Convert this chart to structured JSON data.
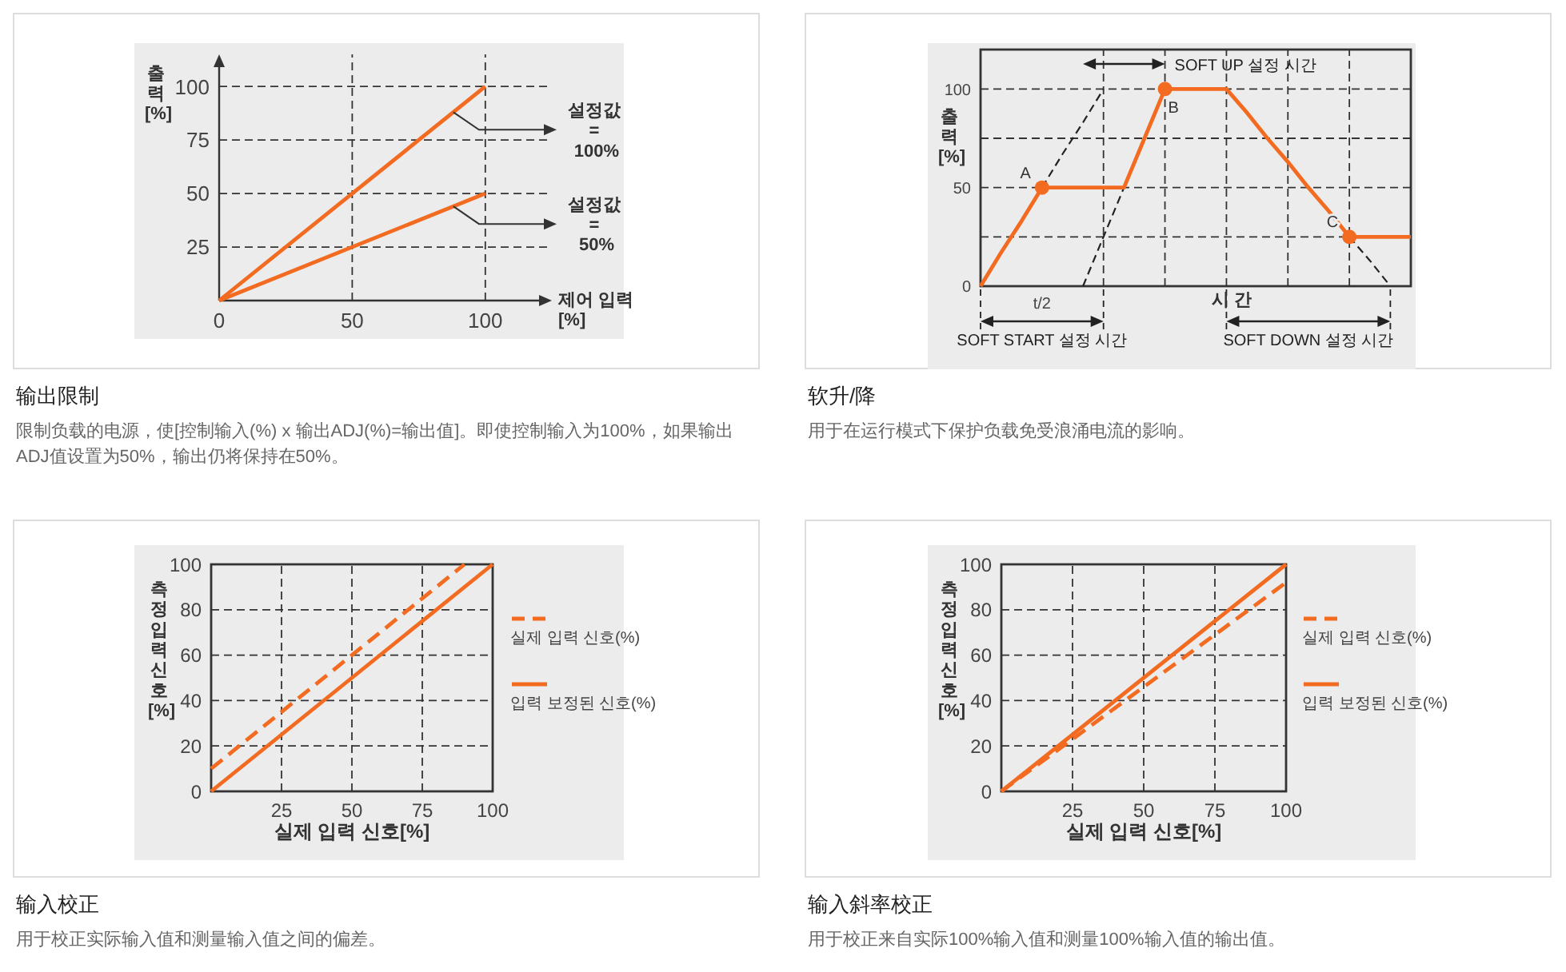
{
  "chart_data": [
    {
      "type": "line",
      "title": "输出限制",
      "xlabel": "제어 입력\n[%]",
      "ylabel": "출\n력\n[%]",
      "xlim": [
        0,
        125
      ],
      "ylim": [
        0,
        115
      ],
      "xticks": [
        0,
        50,
        100
      ],
      "yticks": [
        25,
        50,
        75,
        100
      ],
      "grid": true,
      "series": [
        {
          "color": "#f26b21",
          "x": [
            0,
            100
          ],
          "values": [
            0,
            100
          ]
        },
        {
          "color": "#f26b21",
          "x": [
            0,
            100
          ],
          "values": [
            0,
            50
          ]
        }
      ],
      "annotations": [
        "限制负载的电源，使[控制输入(%) x 输出ADJ(%)=输出值]。即使控制输入为100%，如果输出ADJ值设置为50%，输出仍将保持在50%。",
        {
          "text": "설정값\n=\n100%",
          "x": 88,
          "y": 88
        },
        {
          "text": "설정값\n=\n50%",
          "x": 88,
          "y": 44
        }
      ]
    },
    {
      "type": "line",
      "title": "软升/降",
      "xlabel": "시 간",
      "ylabel": "출\n력\n[%]",
      "ylim": [
        0,
        120
      ],
      "categories": [
        null,
        null,
        null,
        "t/2",
        null,
        null,
        null,
        null,
        null,
        null,
        null,
        null,
        null,
        null,
        null,
        null,
        null,
        null,
        null,
        null,
        null,
        null
      ],
      "yticks": [
        0,
        {
          "value": 25,
          "label": null
        },
        50,
        {
          "value": 75,
          "label": null
        },
        100
      ],
      "grid": true,
      "series": [
        {
          "color": "#222222",
          "line_style": "dashed",
          "values": [
            null,
            null,
            null,
            50,
            67,
            83,
            100,
            null,
            null,
            null,
            null,
            null,
            null,
            null,
            null,
            null,
            null,
            null,
            null,
            null,
            null,
            null
          ]
        },
        {
          "color": "#222222",
          "line_style": "dashed",
          "values": [
            null,
            null,
            null,
            null,
            null,
            0,
            25,
            50,
            null,
            null,
            null,
            null,
            null,
            null,
            null,
            null,
            null,
            null,
            null,
            null,
            null,
            null
          ]
        },
        {
          "color": "#222222",
          "line_style": "dashed",
          "values": [
            null,
            null,
            null,
            null,
            null,
            null,
            null,
            null,
            null,
            null,
            null,
            null,
            null,
            null,
            null,
            null,
            null,
            null,
            25,
            13,
            0,
            null
          ]
        },
        {
          "color": "#f26b21",
          "values": [
            0,
            17,
            33,
            50,
            50,
            50,
            50,
            50,
            75,
            100,
            100,
            100,
            100,
            88,
            75,
            63,
            50,
            38,
            25,
            25,
            25,
            25
          ]
        },
        {
          "type": "scatter",
          "marker": "circle",
          "color": "#f26b21",
          "values": [
            null,
            null,
            null,
            50,
            null,
            null,
            null,
            null,
            null,
            100,
            null,
            null,
            null,
            null,
            null,
            null,
            null,
            null,
            25,
            null,
            null,
            null
          ],
          "value_labels": [
            null,
            null,
            null,
            "A",
            null,
            null,
            null,
            null,
            null,
            "B",
            null,
            null,
            null,
            null,
            null,
            null,
            null,
            null,
            "C",
            null,
            null,
            null
          ]
        }
      ],
      "annotations": [
        "用于在运行模式下保护负载免受浪涌电流的影响。",
        "SOFT START 설정 시간",
        "SOFT UP 설정 시간",
        "SOFT DOWN 설정 시간"
      ]
    },
    {
      "type": "line",
      "title": "输入校正",
      "xlabel": "실제 입력 신호[%]",
      "ylabel": "측\n정\n입\n력\n신\n호\n[%]",
      "xlim": [
        0,
        100
      ],
      "ylim": [
        0,
        100
      ],
      "xticks": [
        {
          "value": 0,
          "label": null
        },
        25,
        50,
        75,
        100
      ],
      "yticks": [
        0,
        20,
        40,
        60,
        80,
        100
      ],
      "grid": true,
      "legend": "right",
      "series": [
        {
          "name": "실제 입력 신호(%)",
          "color": "#f26b21",
          "line_style": "dashed",
          "x": [
            0,
            90
          ],
          "values": [
            10,
            100
          ]
        },
        {
          "name": "입력 보정된 신호(%)",
          "color": "#f26b21",
          "x": [
            0,
            100
          ],
          "values": [
            0,
            100
          ]
        }
      ],
      "annotations": [
        "用于校正实际输入值和测量输入值之间的偏差。"
      ]
    },
    {
      "type": "line",
      "title": "输入斜率校正",
      "xlabel": "실제 입력 신호[%]",
      "ylabel": "측\n정\n입\n력\n신\n호\n[%]",
      "xlim": [
        0,
        100
      ],
      "ylim": [
        0,
        100
      ],
      "xticks": [
        {
          "value": 0,
          "label": null
        },
        25,
        50,
        75,
        100
      ],
      "yticks": [
        0,
        20,
        40,
        60,
        80,
        100
      ],
      "grid": true,
      "legend": "right",
      "series": [
        {
          "name": "실제 입력 신호(%)",
          "color": "#f26b21",
          "line_style": "dashed",
          "x": [
            0,
            100
          ],
          "values": [
            0,
            92
          ]
        },
        {
          "name": "입력 보정된 신호(%)",
          "color": "#f26b21",
          "x": [
            0,
            100
          ],
          "values": [
            0,
            100
          ]
        }
      ],
      "annotations": [
        "用于校正来自实际100%输入值和测量100%输入值的输出值。"
      ]
    }
  ]
}
